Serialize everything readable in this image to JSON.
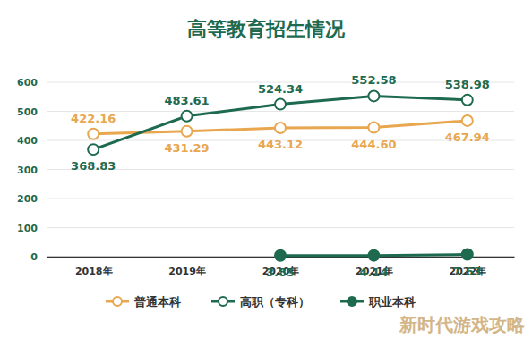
{
  "chart_data": {
    "type": "line",
    "title": "高等教育招生情况",
    "categories": [
      "2018年",
      "2019年",
      "2020年",
      "2021年",
      "2022年"
    ],
    "series": [
      {
        "name": "普通本科",
        "color": "#e8a64e",
        "marker": "open-circle",
        "values": [
          422.16,
          431.29,
          443.12,
          444.6,
          467.94
        ],
        "value_labels": [
          "422.16",
          "431.29",
          "443.12",
          "444.60",
          "467.94"
        ]
      },
      {
        "name": "高职（专科）",
        "color": "#1e6a4f",
        "marker": "open-circle",
        "values": [
          368.83,
          483.61,
          524.34,
          552.58,
          538.98
        ]
      },
      {
        "name": "职业本科",
        "color": "#1e6a4f",
        "marker": "circle",
        "values": [
          null,
          null,
          3.85,
          4.14,
          7.63
        ]
      }
    ],
    "ylim": [
      0,
      600
    ],
    "yticks": [
      0,
      100,
      200,
      300,
      400,
      500,
      600
    ],
    "grid": true,
    "data_labels": true,
    "legend": "bottom",
    "annotations": [
      "新时代游戏攻略"
    ]
  }
}
